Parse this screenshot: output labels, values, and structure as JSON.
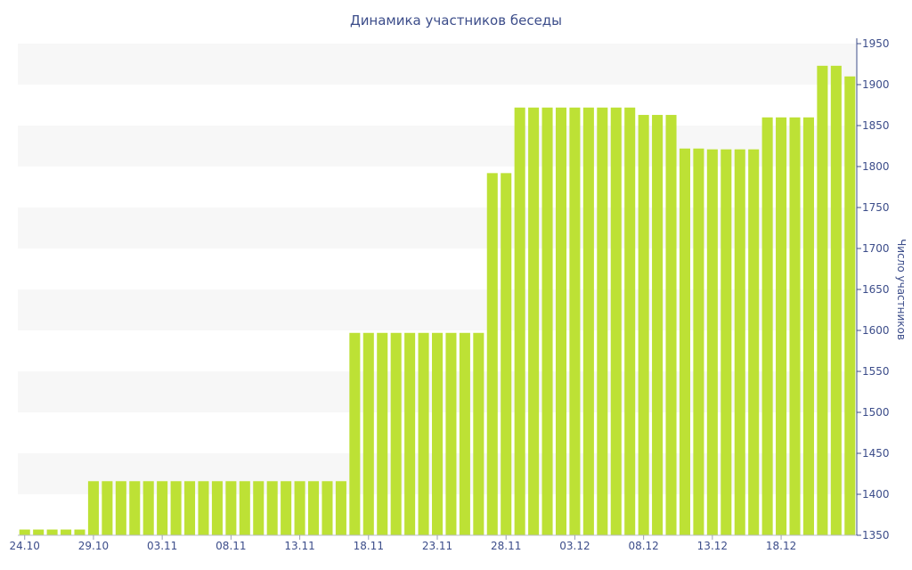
{
  "chart_data": {
    "type": "bar",
    "title": "Динамика участников беседы",
    "ylabel": "Число участников",
    "xlabel": "",
    "ylim": [
      1350,
      1950
    ],
    "yticks": [
      1350,
      1400,
      1450,
      1500,
      1550,
      1600,
      1650,
      1700,
      1750,
      1800,
      1850,
      1900,
      1950
    ],
    "y_axis_side": "right",
    "grid": "horizontal bands",
    "legend": "none",
    "x_tick_labels": [
      "24.10",
      "29.10",
      "03.11",
      "08.11",
      "13.11",
      "18.11",
      "23.11",
      "28.11",
      "03.12",
      "08.12",
      "13.12",
      "18.12"
    ],
    "x_tick_every": 5,
    "values": [
      1357,
      1357,
      1357,
      1357,
      1357,
      1416,
      1416,
      1416,
      1416,
      1416,
      1416,
      1416,
      1416,
      1416,
      1416,
      1416,
      1416,
      1416,
      1416,
      1416,
      1416,
      1416,
      1416,
      1416,
      1597,
      1597,
      1597,
      1597,
      1597,
      1597,
      1597,
      1597,
      1597,
      1597,
      1792,
      1792,
      1872,
      1872,
      1872,
      1872,
      1872,
      1872,
      1872,
      1872,
      1872,
      1863,
      1863,
      1863,
      1822,
      1822,
      1821,
      1821,
      1821,
      1821,
      1860,
      1860,
      1860,
      1860,
      1923,
      1923,
      1910
    ],
    "bar_color": "#bde135",
    "band_color": "#f7f7f7",
    "text_color": "#3c4d8a"
  }
}
